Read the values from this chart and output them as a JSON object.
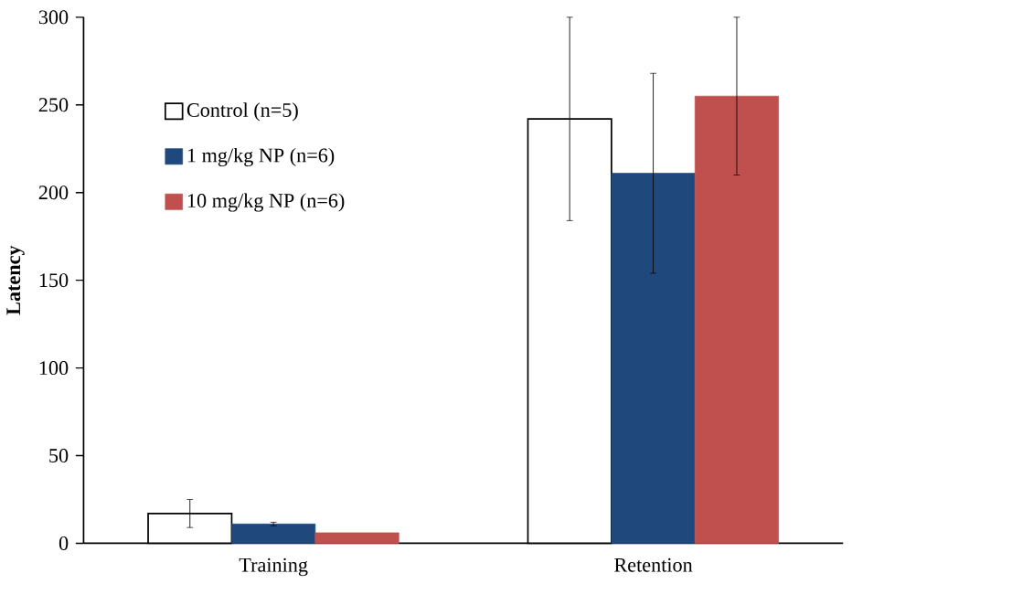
{
  "chart_data": {
    "type": "bar",
    "ylabel": "Latency",
    "categories": [
      "Training",
      "Retention"
    ],
    "ylim": [
      0,
      300
    ],
    "yticks": [
      0,
      50,
      100,
      150,
      200,
      250,
      300
    ],
    "legend": "top left",
    "grid": false,
    "series": [
      {
        "name": "Control (n=5)",
        "color": "#ffffff",
        "values": [
          17,
          242
        ],
        "errors": [
          8,
          58
        ]
      },
      {
        "name": "1 mg/kg NP (n=6)",
        "color": "#1f497d",
        "values": [
          11,
          211
        ],
        "errors": [
          1,
          57
        ]
      },
      {
        "name": "10 mg/kg NP (n=6)",
        "color": "#c0504d",
        "values": [
          6,
          255
        ],
        "errors": [
          null,
          45
        ]
      }
    ]
  }
}
